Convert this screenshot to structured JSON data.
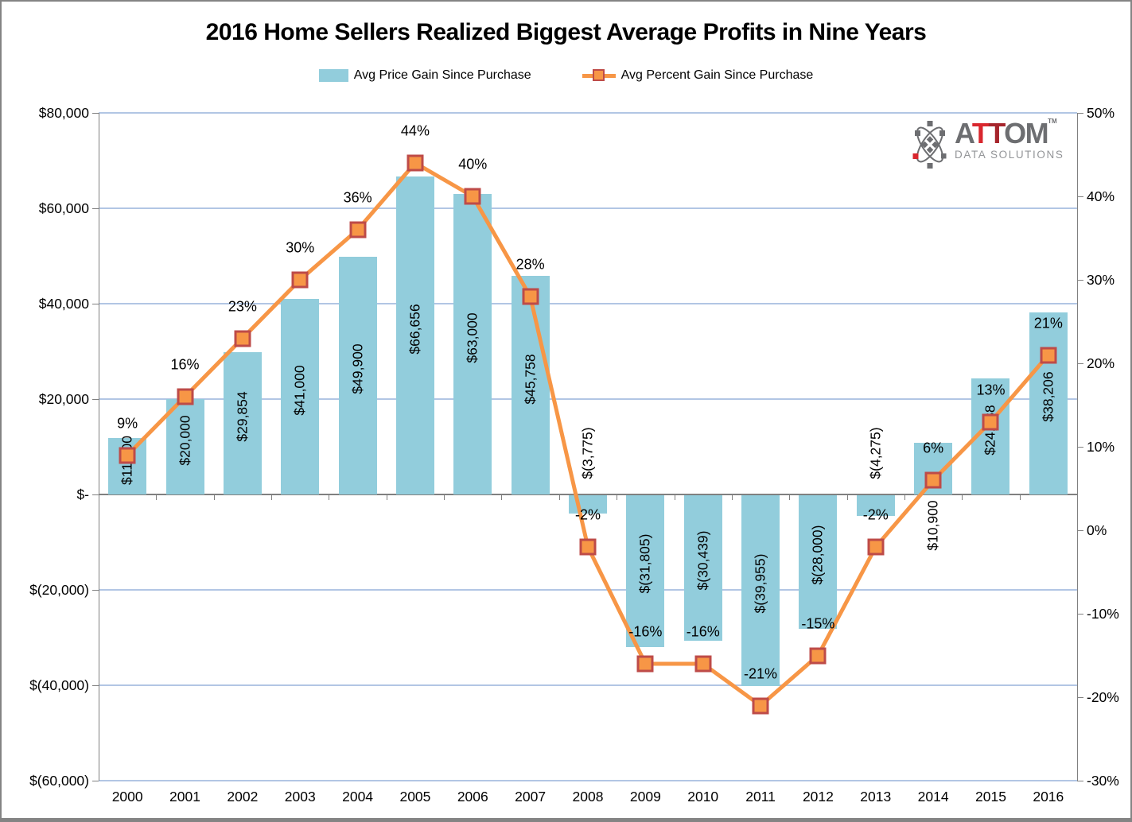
{
  "chart_data": {
    "type": "combo-bar-line",
    "title": "2016 Home Sellers Realized Biggest Average Profits in Nine Years",
    "categories": [
      "2000",
      "2001",
      "2002",
      "2003",
      "2004",
      "2005",
      "2006",
      "2007",
      "2008",
      "2009",
      "2010",
      "2011",
      "2012",
      "2013",
      "2014",
      "2015",
      "2016"
    ],
    "series": [
      {
        "name": "Avg Price Gain Since Purchase",
        "type": "bar",
        "axis": "left",
        "color": "#92CDDC",
        "values": [
          11800,
          20000,
          29854,
          41000,
          49900,
          66656,
          63000,
          45758,
          -3775,
          -31805,
          -30439,
          -39955,
          -28000,
          -4275,
          10900,
          24288,
          38206
        ],
        "labels": [
          "$11,800",
          "$20,000",
          "$29,854",
          "$41,000",
          "$49,900",
          "$66,656",
          "$63,000",
          "$45,758",
          "$(3,775)",
          "$(31,805)",
          "$(30,439)",
          "$(39,955)",
          "$(28,000)",
          "$(4,275)",
          "$10,900",
          "$24,288",
          "$38,206"
        ]
      },
      {
        "name": "Avg Percent Gain Since Purchase",
        "type": "line",
        "axis": "right",
        "color": "#F79646",
        "marker_border": "#BE4B48",
        "values": [
          9,
          16,
          23,
          30,
          36,
          44,
          40,
          28,
          -2,
          -16,
          -16,
          -21,
          -15,
          -2,
          6,
          13,
          21
        ],
        "labels": [
          "9%",
          "16%",
          "23%",
          "30%",
          "36%",
          "44%",
          "40%",
          "28%",
          "-2%",
          "-16%",
          "-16%",
          "-21%",
          "-15%",
          "-2%",
          "6%",
          "13%",
          "21%"
        ]
      }
    ],
    "left_axis": {
      "tick_labels": [
        "$80,000",
        "$60,000",
        "$40,000",
        "$20,000",
        "$-",
        "$(20,000)",
        "$(40,000)",
        "$(60,000)"
      ],
      "tick_values": [
        80000,
        60000,
        40000,
        20000,
        0,
        -20000,
        -40000,
        -60000
      ],
      "min": -60000,
      "max": 80000
    },
    "right_axis": {
      "tick_labels": [
        "50%",
        "40%",
        "30%",
        "20%",
        "10%",
        "0%",
        "-10%",
        "-20%",
        "-30%"
      ],
      "tick_values": [
        50,
        40,
        30,
        20,
        10,
        0,
        -10,
        -20,
        -30
      ],
      "min": -30,
      "max": 50
    },
    "grid": true,
    "legend_position": "top",
    "colors": {
      "gridline": "#B2C6E4",
      "axis_line": "#808080",
      "zero_line": "#808080",
      "text": "#000000"
    }
  },
  "logo": {
    "part_a": "A",
    "part_t1": "T",
    "part_t2": "T",
    "part_om": "OM",
    "tm": "TM",
    "subtitle": "DATA SOLUTIONS",
    "gray": "#6D6E71",
    "red_bright": "#D9272E",
    "red_dark": "#A6252C",
    "subtitle_gray": "#939598"
  }
}
